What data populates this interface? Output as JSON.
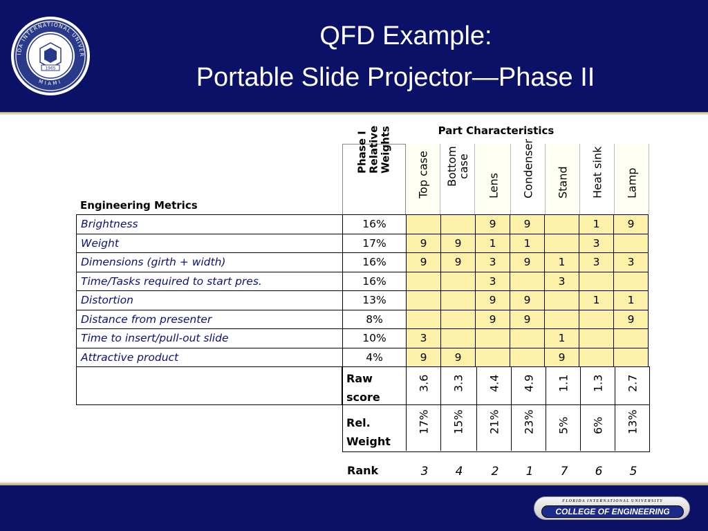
{
  "slide": {
    "title_line1": "QFD Example:",
    "title_line2": "Portable Slide Projector—Phase II",
    "seal": {
      "text": "FLORIDA INTERNATIONAL UNIVERSITY",
      "year": "1965",
      "city": "MIAMI"
    },
    "footer": {
      "university": "FLORIDA INTERNATIONAL UNIVERSITY",
      "college": "COLLEGE OF ENGINEERING"
    },
    "colors": {
      "navy": "#0b1166",
      "gold": "#c7b98a",
      "cell_yellow": "#fdf0a8",
      "metric_text": "#0b0f7a"
    }
  },
  "table": {
    "part_characteristics_label": "Part Characteristics",
    "engineering_metrics_label": "Engineering Metrics",
    "weights_header": [
      "Phase I",
      "Relative",
      "Weights"
    ],
    "columns": [
      {
        "label": [
          "Top case"
        ]
      },
      {
        "label": [
          "Bottom",
          "case"
        ]
      },
      {
        "label": [
          "Lens"
        ]
      },
      {
        "label": [
          "Condenser"
        ]
      },
      {
        "label": [
          "Stand"
        ]
      },
      {
        "label": [
          "Heat sink"
        ]
      },
      {
        "label": [
          "Lamp"
        ]
      }
    ],
    "rows": [
      {
        "metric": "Brightness",
        "weight": "16%",
        "cells": [
          "",
          "",
          "9",
          "9",
          "",
          "1",
          "9"
        ]
      },
      {
        "metric": "Weight",
        "weight": "17%",
        "cells": [
          "9",
          "9",
          "1",
          "1",
          "",
          "3",
          ""
        ]
      },
      {
        "metric": "Dimensions (girth + width)",
        "weight": "16%",
        "cells": [
          "9",
          "9",
          "3",
          "9",
          "1",
          "3",
          "3"
        ]
      },
      {
        "metric": "Time/Tasks required to start pres.",
        "weight": "16%",
        "cells": [
          "",
          "",
          "3",
          "",
          "3",
          "",
          ""
        ]
      },
      {
        "metric": "Distortion",
        "weight": "13%",
        "cells": [
          "",
          "",
          "9",
          "9",
          "",
          "1",
          "1"
        ]
      },
      {
        "metric": "Distance from presenter",
        "weight": "8%",
        "cells": [
          "",
          "",
          "9",
          "9",
          "",
          "",
          "9"
        ]
      },
      {
        "metric": "Time to insert/pull-out slide",
        "weight": "10%",
        "cells": [
          "3",
          "",
          "",
          "",
          "1",
          "",
          ""
        ]
      },
      {
        "metric": "Attractive product",
        "weight": "4%",
        "cells": [
          "9",
          "9",
          "",
          "",
          "9",
          "",
          ""
        ]
      }
    ],
    "raw_score": {
      "label": [
        "Raw",
        "score"
      ],
      "values": [
        "3.6",
        "3.3",
        "4.4",
        "4.9",
        "1.1",
        "1.3",
        "2.7"
      ]
    },
    "rel_weight": {
      "label": [
        "Rel.",
        "Weight"
      ],
      "values": [
        "17%",
        "15%",
        "21%",
        "23%",
        "5%",
        "6%",
        "13%"
      ]
    },
    "rank": {
      "label": "Rank",
      "values": [
        "3",
        "4",
        "2",
        "1",
        "7",
        "6",
        "5"
      ]
    }
  }
}
